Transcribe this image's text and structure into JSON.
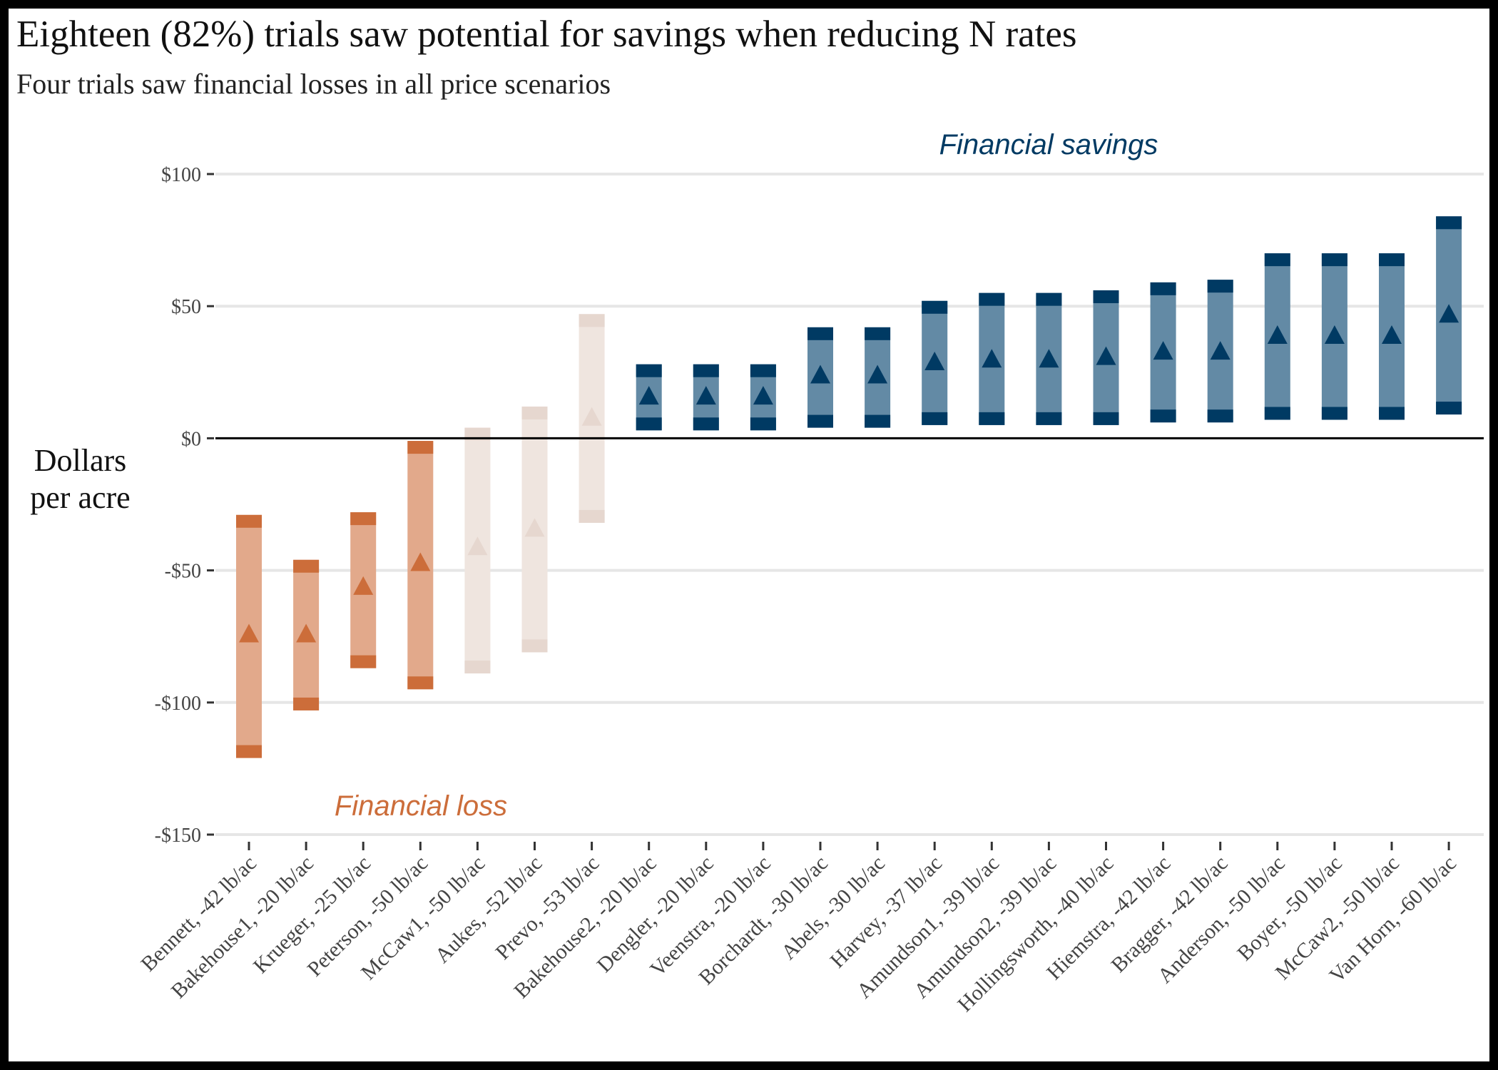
{
  "chart_data": {
    "type": "range-bar",
    "title": "Eighteen (82%) trials saw potential for savings when reducing N rates",
    "subtitle": "Four trials saw financial losses in all price scenarios",
    "ylabel_lines": [
      "Dollars",
      "per acre"
    ],
    "ylim": [
      -150,
      100
    ],
    "yticks": [
      100,
      50,
      0,
      -50,
      -100,
      -150
    ],
    "ytick_labels": [
      "$100",
      "$50",
      "$0",
      "-$50",
      "-$100",
      "-$150"
    ],
    "grid": true,
    "annotations": {
      "savings": "Financial savings",
      "loss": "Financial loss"
    },
    "colors": {
      "loss": "#cc6d3a",
      "loss_light": "#e2a98b",
      "mixed": "#e6d7cf",
      "mixed_light": "#efe5df",
      "savings": "#003a63",
      "savings_light": "#638aa5",
      "zero_line": "#000000",
      "grid": "#e6e6e6"
    },
    "categories": [
      "Bennett, -42 lb/ac",
      "Bakehouse1, -20 lb/ac",
      "Krueger, -25 lb/ac",
      "Peterson, -50 lb/ac",
      "McCaw1, -50 lb/ac",
      "Aukes, -52 lb/ac",
      "Prevo, -53 lb/ac",
      "Bakehouse2, -20 lb/ac",
      "Dengler, -20 lb/ac",
      "Veenstra, -20 lb/ac",
      "Borchardt, -30 lb/ac",
      "Abels, -30 lb/ac",
      "Harvey, -37 lb/ac",
      "Amundson1, -39 lb/ac",
      "Amundson2, -39 lb/ac",
      "Hollingsworth, -40 lb/ac",
      "Hiemstra, -42 lb/ac",
      "Bragger, -42 lb/ac",
      "Anderson, -50 lb/ac",
      "Boyer, -50 lb/ac",
      "McCaw2, -50 lb/ac",
      "Van Horn, -60 lb/ac"
    ],
    "series": [
      {
        "low": [
          -121,
          -103,
          -87,
          -95,
          -89,
          -81,
          -32,
          3,
          3,
          3,
          4,
          4,
          5,
          5,
          5,
          5,
          6,
          6,
          7,
          7,
          7,
          9
        ],
        "mid": [
          -74,
          -74,
          -56,
          -47,
          -41,
          -34,
          8,
          16,
          16,
          16,
          24,
          24,
          29,
          30,
          30,
          31,
          33,
          33,
          39,
          39,
          39,
          47
        ],
        "high": [
          -29,
          -46,
          -28,
          -1,
          4,
          12,
          47,
          28,
          28,
          28,
          42,
          42,
          52,
          55,
          55,
          56,
          59,
          60,
          70,
          70,
          70,
          84
        ],
        "category_group": [
          "loss",
          "loss",
          "loss",
          "loss",
          "mixed",
          "mixed",
          "mixed",
          "savings",
          "savings",
          "savings",
          "savings",
          "savings",
          "savings",
          "savings",
          "savings",
          "savings",
          "savings",
          "savings",
          "savings",
          "savings",
          "savings",
          "savings"
        ]
      }
    ]
  }
}
